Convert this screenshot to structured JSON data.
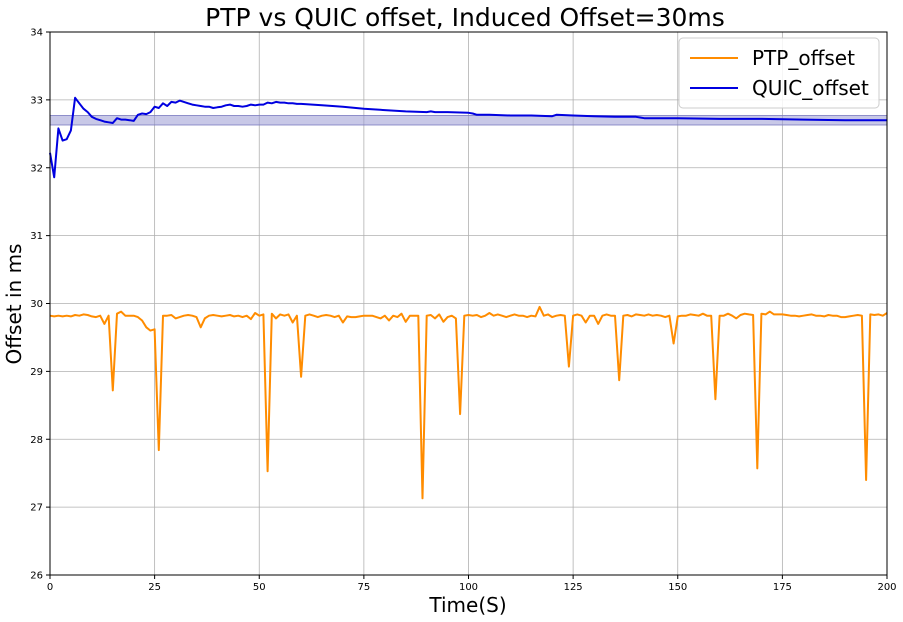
{
  "chart_data": {
    "type": "line",
    "title": "PTP vs QUIC offset, Induced Offset=30ms",
    "xlabel": "Time(S)",
    "ylabel": "Offset in ms",
    "xlim": [
      0,
      200
    ],
    "ylim": [
      26,
      34
    ],
    "xticks": [
      0,
      25,
      50,
      75,
      100,
      125,
      150,
      175,
      200
    ],
    "yticks": [
      26,
      27,
      28,
      29,
      30,
      31,
      32,
      33,
      34
    ],
    "grid": true,
    "legend_position": "top-right",
    "band": {
      "ymin": 32.63,
      "ymax": 32.77,
      "color": "#9a9ad4"
    },
    "series": [
      {
        "name": "PTP_offset",
        "color": "#ff8c00",
        "x": [
          0,
          1,
          2,
          3,
          4,
          5,
          6,
          7,
          8,
          9,
          10,
          11,
          12,
          13,
          14,
          15,
          16,
          17,
          18,
          19,
          20,
          21,
          22,
          23,
          24,
          25,
          26,
          27,
          28,
          29,
          30,
          31,
          32,
          33,
          34,
          35,
          36,
          37,
          38,
          39,
          40,
          41,
          42,
          43,
          44,
          45,
          46,
          47,
          48,
          49,
          50,
          51,
          52,
          53,
          54,
          55,
          56,
          57,
          58,
          59,
          60,
          61,
          62,
          63,
          64,
          65,
          66,
          67,
          68,
          69,
          70,
          71,
          72,
          73,
          74,
          75,
          76,
          77,
          78,
          79,
          80,
          81,
          82,
          83,
          84,
          85,
          86,
          87,
          88,
          89,
          90,
          91,
          92,
          93,
          94,
          95,
          96,
          97,
          98,
          99,
          100,
          101,
          102,
          103,
          104,
          105,
          106,
          107,
          108,
          109,
          110,
          111,
          112,
          113,
          114,
          115,
          116,
          117,
          118,
          119,
          120,
          121,
          122,
          123,
          124,
          125,
          126,
          127,
          128,
          129,
          130,
          131,
          132,
          133,
          134,
          135,
          136,
          137,
          138,
          139,
          140,
          141,
          142,
          143,
          144,
          145,
          146,
          147,
          148,
          149,
          150,
          151,
          152,
          153,
          154,
          155,
          156,
          157,
          158,
          159,
          160,
          161,
          162,
          163,
          164,
          165,
          166,
          167,
          168,
          169,
          170,
          171,
          172,
          173,
          174,
          175,
          176,
          177,
          178,
          179,
          180,
          181,
          182,
          183,
          184,
          185,
          186,
          187,
          188,
          189,
          190,
          191,
          192,
          193,
          194,
          195,
          196,
          197,
          198,
          199,
          200
        ],
        "y": [
          29.82,
          29.81,
          29.82,
          29.81,
          29.82,
          29.81,
          29.83,
          29.82,
          29.84,
          29.83,
          29.81,
          29.8,
          29.82,
          29.7,
          29.82,
          28.72,
          29.85,
          29.88,
          29.82,
          29.82,
          29.82,
          29.8,
          29.75,
          29.65,
          29.6,
          29.62,
          27.84,
          29.82,
          29.82,
          29.83,
          29.78,
          29.8,
          29.82,
          29.83,
          29.82,
          29.8,
          29.65,
          29.78,
          29.82,
          29.83,
          29.82,
          29.81,
          29.82,
          29.83,
          29.81,
          29.82,
          29.8,
          29.82,
          29.77,
          29.86,
          29.82,
          29.84,
          27.53,
          29.85,
          29.78,
          29.84,
          29.82,
          29.84,
          29.72,
          29.82,
          28.92,
          29.82,
          29.84,
          29.82,
          29.8,
          29.82,
          29.83,
          29.82,
          29.8,
          29.82,
          29.72,
          29.81,
          29.8,
          29.8,
          29.81,
          29.82,
          29.82,
          29.82,
          29.8,
          29.78,
          29.82,
          29.75,
          29.82,
          29.8,
          29.85,
          29.73,
          29.82,
          29.82,
          29.82,
          27.13,
          29.82,
          29.83,
          29.78,
          29.84,
          29.73,
          29.8,
          29.82,
          29.78,
          28.37,
          29.82,
          29.83,
          29.82,
          29.83,
          29.8,
          29.82,
          29.86,
          29.82,
          29.84,
          29.82,
          29.8,
          29.82,
          29.84,
          29.82,
          29.82,
          29.8,
          29.82,
          29.81,
          29.95,
          29.82,
          29.84,
          29.8,
          29.82,
          29.83,
          29.82,
          29.07,
          29.82,
          29.84,
          29.82,
          29.72,
          29.82,
          29.82,
          29.7,
          29.82,
          29.84,
          29.82,
          29.82,
          28.87,
          29.82,
          29.83,
          29.81,
          29.84,
          29.83,
          29.82,
          29.84,
          29.82,
          29.83,
          29.82,
          29.8,
          29.82,
          29.41,
          29.81,
          29.82,
          29.82,
          29.84,
          29.83,
          29.82,
          29.85,
          29.82,
          29.82,
          28.59,
          29.82,
          29.82,
          29.85,
          29.82,
          29.78,
          29.83,
          29.85,
          29.84,
          29.83,
          27.57,
          29.85,
          29.84,
          29.88,
          29.84,
          29.84,
          29.84,
          29.83,
          29.82,
          29.82,
          29.81,
          29.82,
          29.83,
          29.84,
          29.82,
          29.82,
          29.81,
          29.83,
          29.82,
          29.82,
          29.8,
          29.8,
          29.81,
          29.82,
          29.83,
          29.82,
          27.4,
          29.84,
          29.83,
          29.84,
          29.82,
          29.86
        ]
      },
      {
        "name": "QUIC_offset",
        "color": "#0000e0",
        "x": [
          0,
          1,
          2,
          3,
          4,
          5,
          6,
          7,
          8,
          9,
          10,
          11,
          12,
          13,
          14,
          15,
          16,
          17,
          18,
          19,
          20,
          21,
          22,
          23,
          24,
          25,
          26,
          27,
          28,
          29,
          30,
          31,
          32,
          33,
          34,
          35,
          36,
          37,
          38,
          39,
          40,
          41,
          42,
          43,
          44,
          45,
          46,
          47,
          48,
          49,
          50,
          51,
          52,
          53,
          54,
          55,
          56,
          57,
          58,
          59,
          60,
          65,
          70,
          75,
          80,
          85,
          90,
          91,
          92,
          95,
          100,
          101,
          102,
          103,
          105,
          110,
          115,
          120,
          121,
          125,
          130,
          135,
          140,
          141,
          142,
          150,
          160,
          170,
          180,
          190,
          200
        ],
        "y": [
          32.22,
          31.86,
          32.58,
          32.4,
          32.42,
          32.55,
          33.03,
          32.95,
          32.87,
          32.82,
          32.75,
          32.72,
          32.7,
          32.68,
          32.67,
          32.66,
          32.73,
          32.71,
          32.71,
          32.7,
          32.69,
          32.78,
          32.8,
          32.79,
          32.82,
          32.9,
          32.88,
          32.95,
          32.91,
          32.97,
          32.96,
          32.99,
          32.97,
          32.95,
          32.93,
          32.92,
          32.91,
          32.9,
          32.9,
          32.88,
          32.89,
          32.9,
          32.92,
          32.93,
          32.91,
          32.91,
          32.9,
          32.91,
          32.93,
          32.92,
          32.93,
          32.93,
          32.96,
          32.95,
          32.97,
          32.96,
          32.96,
          32.95,
          32.95,
          32.94,
          32.94,
          32.92,
          32.9,
          32.87,
          32.85,
          32.83,
          32.82,
          32.83,
          32.82,
          32.82,
          32.81,
          32.8,
          32.78,
          32.78,
          32.78,
          32.77,
          32.77,
          32.76,
          32.78,
          32.77,
          32.76,
          32.75,
          32.75,
          32.74,
          32.73,
          32.73,
          32.72,
          32.72,
          32.71,
          32.7,
          32.7
        ]
      }
    ]
  }
}
